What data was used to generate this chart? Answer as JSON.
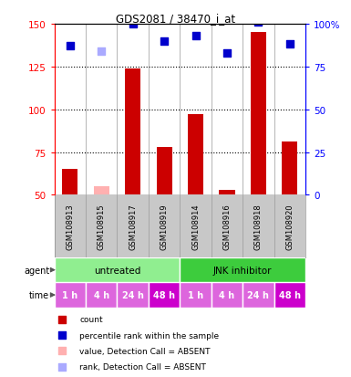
{
  "title": "GDS2081 / 38470_i_at",
  "samples": [
    "GSM108913",
    "GSM108915",
    "GSM108917",
    "GSM108919",
    "GSM108914",
    "GSM108916",
    "GSM108918",
    "GSM108920"
  ],
  "bar_values": [
    65,
    55,
    124,
    78,
    97,
    53,
    145,
    81
  ],
  "bar_absent": [
    false,
    true,
    false,
    false,
    false,
    false,
    false,
    false
  ],
  "dot_values": [
    87,
    84,
    100,
    90,
    93,
    83,
    101,
    88
  ],
  "dot_absent": [
    false,
    true,
    false,
    false,
    false,
    false,
    false,
    false
  ],
  "left_ylim": [
    50,
    150
  ],
  "left_yticks": [
    50,
    75,
    100,
    125,
    150
  ],
  "right_ylim": [
    0,
    100
  ],
  "right_yticks": [
    0,
    25,
    50,
    75,
    100
  ],
  "right_yticklabels": [
    "0",
    "25",
    "50",
    "75",
    "100%"
  ],
  "agent_colors": [
    "#90EE90",
    "#3DCC3D"
  ],
  "agent_labels": [
    "untreated",
    "JNK inhibitor"
  ],
  "time_colors": [
    "#DD66DD",
    "#DD66DD",
    "#DD66DD",
    "#CC00CC",
    "#DD66DD",
    "#DD66DD",
    "#DD66DD",
    "#CC00CC"
  ],
  "time_labels": [
    "1 h",
    "4 h",
    "24 h",
    "48 h",
    "1 h",
    "4 h",
    "24 h",
    "48 h"
  ],
  "bar_color_present": "#CC0000",
  "bar_color_absent": "#FFB0B0",
  "dot_color_present": "#0000CC",
  "dot_color_absent": "#AAAAFF",
  "bg_color": "#C8C8C8",
  "legend_items": [
    {
      "color": "#CC0000",
      "label": "count"
    },
    {
      "color": "#0000CC",
      "label": "percentile rank within the sample"
    },
    {
      "color": "#FFB0B0",
      "label": "value, Detection Call = ABSENT"
    },
    {
      "color": "#AAAAFF",
      "label": "rank, Detection Call = ABSENT"
    }
  ]
}
